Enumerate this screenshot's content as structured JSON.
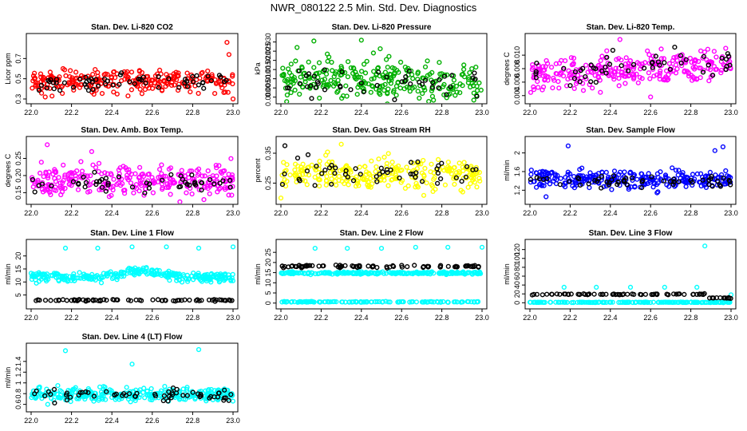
{
  "page": {
    "title": "NWR_080122  2.5 Min. Std. Dev. Diagnostics"
  },
  "chart_data": [
    {
      "type": "scatter",
      "title": "Stan. Dev. Li-820 CO2",
      "xlabel": "",
      "ylabel": "Licor ppm",
      "xlim": [
        22.0,
        23.0
      ],
      "ylim": [
        0.3,
        0.9
      ],
      "xticks": [
        "22.0",
        "22.2",
        "22.4",
        "22.6",
        "22.8",
        "23.0"
      ],
      "yticks": [
        0.3,
        0.5,
        0.7
      ],
      "series": [
        {
          "name": "all",
          "color": "#ff0000",
          "n": 260,
          "center": 0.48,
          "spread": 0.11,
          "outliers": [
            [
              22.97,
              0.86
            ],
            [
              22.98,
              0.74
            ],
            [
              23.0,
              0.3
            ],
            [
              22.07,
              0.32
            ],
            [
              22.48,
              0.33
            ]
          ]
        },
        {
          "name": "highlighted",
          "color": "#000000",
          "n": 60,
          "center": 0.47,
          "spread": 0.07
        }
      ]
    },
    {
      "type": "scatter",
      "title": "Stan. Dev. Li-820 Pressure",
      "xlabel": "",
      "ylabel": "kPa",
      "xlim": [
        22.0,
        23.0
      ],
      "ylim": [
        -0.001,
        0.032
      ],
      "xticks": [
        "22.0",
        "22.2",
        "22.4",
        "22.6",
        "22.8",
        "23.0"
      ],
      "yticks": [
        0.0,
        0.005,
        0.01,
        0.015,
        0.02,
        0.025,
        0.03
      ],
      "ytick_labels": [
        "0.000",
        "0.005",
        "0.010",
        "0.015",
        "0.020",
        "0.025",
        "0.030"
      ],
      "series": [
        {
          "name": "all",
          "color": "#00b000",
          "n": 280,
          "center": 0.009,
          "spread": 0.01,
          "trend": -0.003,
          "outliers": [
            [
              22.4,
              0.031
            ],
            [
              22.08,
              0.027
            ],
            [
              22.46,
              0.024
            ]
          ]
        },
        {
          "name": "highlighted",
          "color": "#000000",
          "n": 45,
          "center": 0.007,
          "spread": 0.006
        }
      ]
    },
    {
      "type": "scatter",
      "title": "Stan. Dev. Li-820 Temp.",
      "xlabel": "",
      "ylabel": "degrees C",
      "xlim": [
        22.0,
        23.0
      ],
      "ylim": [
        0.0035,
        0.0125
      ],
      "xticks": [
        "22.0",
        "22.2",
        "22.4",
        "22.6",
        "22.8",
        "23.0"
      ],
      "yticks": [
        0.004,
        0.006,
        0.008,
        0.01
      ],
      "ytick_labels": [
        "0.004",
        "0.006",
        "0.008",
        "0.010"
      ],
      "series": [
        {
          "name": "all",
          "color": "#ff00ff",
          "n": 280,
          "center": 0.0078,
          "spread": 0.0022,
          "trend": 0.0015,
          "outliers": [
            [
              22.6,
              0.0038
            ],
            [
              22.02,
              0.0049
            ]
          ]
        },
        {
          "name": "highlighted",
          "color": "#000000",
          "n": 50,
          "center": 0.0082,
          "spread": 0.0018,
          "trend": 0.0015
        }
      ]
    },
    {
      "type": "scatter",
      "title": "Stan. Dev. Amb. Box Temp.",
      "xlabel": "",
      "ylabel": "degrees C",
      "xlim": [
        22.0,
        23.0
      ],
      "ylim": [
        0.13,
        0.3
      ],
      "xticks": [
        "22.0",
        "22.2",
        "22.4",
        "22.6",
        "22.8",
        "23.0"
      ],
      "yticks": [
        0.15,
        0.2,
        0.25
      ],
      "ytick_labels": [
        "0.15",
        "0.20",
        "0.25"
      ],
      "series": [
        {
          "name": "all",
          "color": "#ff00ff",
          "n": 280,
          "center": 0.185,
          "spread": 0.04,
          "outliers": [
            [
              22.08,
              0.29
            ],
            [
              22.3,
              0.27
            ]
          ]
        },
        {
          "name": "highlighted",
          "color": "#000000",
          "n": 50,
          "center": 0.18,
          "spread": 0.025
        }
      ]
    },
    {
      "type": "scatter",
      "title": "Stan. Dev. Gas Stream RH",
      "xlabel": "",
      "ylabel": "percent",
      "xlim": [
        22.0,
        23.0
      ],
      "ylim": [
        0.195,
        0.39
      ],
      "xticks": [
        "22.0",
        "22.2",
        "22.4",
        "22.6",
        "22.8",
        "23.0"
      ],
      "yticks": [
        0.25,
        0.35
      ],
      "ytick_labels": [
        "0.25",
        "0.35"
      ],
      "series": [
        {
          "name": "all",
          "color": "#ffff00",
          "n": 260,
          "center": 0.28,
          "spread": 0.045,
          "outliers": [
            [
              22.3,
              0.38
            ],
            [
              22.0,
              0.2
            ]
          ]
        },
        {
          "name": "highlighted",
          "color": "#000000",
          "n": 50,
          "center": 0.28,
          "spread": 0.04,
          "outliers": [
            [
              22.02,
              0.375
            ]
          ]
        }
      ]
    },
    {
      "type": "scatter",
      "title": "Stan. Dev. Sample Flow",
      "xlabel": "",
      "ylabel": "ml/min",
      "xlim": [
        22.0,
        23.0
      ],
      "ylim": [
        1.0,
        2.25
      ],
      "xticks": [
        "22.0",
        "22.2",
        "22.4",
        "22.6",
        "22.8",
        "23.0"
      ],
      "yticks": [
        1.2,
        1.6,
        2.0
      ],
      "series": [
        {
          "name": "all",
          "color": "#0000ff",
          "n": 280,
          "center": 1.42,
          "spread": 0.18,
          "outliers": [
            [
              22.19,
              2.15
            ],
            [
              22.96,
              2.13
            ],
            [
              22.92,
              2.05
            ],
            [
              22.08,
              1.06
            ]
          ]
        },
        {
          "name": "highlighted",
          "color": "#000000",
          "n": 55,
          "center": 1.4,
          "spread": 0.12
        }
      ]
    },
    {
      "type": "scatter",
      "title": "Stan. Dev. Line 1 Flow",
      "xlabel": "",
      "ylabel": "ml/min",
      "xlim": [
        22.0,
        23.0
      ],
      "ylim": [
        1.5,
        24.5
      ],
      "xticks": [
        "22.0",
        "22.2",
        "22.4",
        "22.6",
        "22.8",
        "23.0"
      ],
      "yticks": [
        5,
        10,
        15,
        20
      ],
      "series": [
        {
          "name": "all",
          "color": "#00ffff",
          "n": 300,
          "center": 11.8,
          "spread": 1.6,
          "bump": 2.5,
          "outliers": [
            [
              22.17,
              23.0
            ],
            [
              22.33,
              23.0
            ],
            [
              22.5,
              23.5
            ],
            [
              22.67,
              23.5
            ],
            [
              22.83,
              23.0
            ],
            [
              23.0,
              23.5
            ]
          ]
        },
        {
          "name": "highlighted",
          "color": "#000000",
          "n": 70,
          "center": 3.0,
          "spread": 0.3
        }
      ]
    },
    {
      "type": "scatter",
      "title": "Stan. Dev. Line 2 Flow",
      "xlabel": "",
      "ylabel": "ml/min",
      "xlim": [
        22.0,
        23.0
      ],
      "ylim": [
        -0.5,
        29.0
      ],
      "xticks": [
        "22.0",
        "22.2",
        "22.4",
        "22.6",
        "22.8",
        "23.0"
      ],
      "yticks": [
        0,
        5,
        10,
        15,
        20,
        25
      ],
      "series": [
        {
          "name": "all",
          "color": "#00ffff",
          "n": 250,
          "center": 14.8,
          "spread": 0.5,
          "outliers": [
            [
              22.17,
              27.0
            ],
            [
              22.33,
              27.0
            ],
            [
              22.5,
              27.0
            ],
            [
              22.67,
              27.5
            ],
            [
              22.83,
              27.5
            ],
            [
              23.0,
              27.5
            ]
          ]
        },
        {
          "name": "baseline",
          "color": "#00ffff",
          "n": 120,
          "center": 0.6,
          "spread": 0.2
        },
        {
          "name": "highlighted",
          "color": "#000000",
          "n": 80,
          "center": 18.0,
          "spread": 0.6
        }
      ]
    },
    {
      "type": "scatter",
      "title": "Stan. Dev. Line 3 Flow",
      "xlabel": "",
      "ylabel": "ml/min",
      "xlim": [
        22.0,
        23.0
      ],
      "ylim": [
        -3,
        132
      ],
      "xticks": [
        "22.0",
        "22.2",
        "22.4",
        "22.6",
        "22.8",
        "23.0"
      ],
      "yticks": [
        0,
        20,
        40,
        60,
        80,
        100,
        120
      ],
      "series": [
        {
          "name": "all",
          "color": "#00ffff",
          "n": 180,
          "center": 1.0,
          "spread": 0.5,
          "outliers": [
            [
              22.17,
              35
            ],
            [
              22.33,
              35
            ],
            [
              22.5,
              35
            ],
            [
              22.67,
              35
            ],
            [
              22.83,
              35
            ],
            [
              22.87,
              128
            ],
            [
              23.0,
              18
            ]
          ]
        },
        {
          "name": "highlighted",
          "color": "#000000",
          "n": 80,
          "center": 19.0,
          "spread": 1.0,
          "step_after": 22.87,
          "step_value": 11.0
        }
      ]
    },
    {
      "type": "scatter",
      "title": "Stan. Dev. Line 4 (LT) Flow",
      "xlabel": "",
      "ylabel": "ml/min",
      "xlim": [
        22.0,
        23.0
      ],
      "ylim": [
        0.55,
        1.65
      ],
      "xticks": [
        "22.0",
        "22.2",
        "22.4",
        "22.6",
        "22.8",
        "23.0"
      ],
      "yticks": [
        0.6,
        0.8,
        1.0,
        1.2,
        1.4
      ],
      "series": [
        {
          "name": "all",
          "color": "#00ffff",
          "n": 300,
          "center": 0.78,
          "spread": 0.11,
          "outliers": [
            [
              22.17,
              1.6
            ],
            [
              22.5,
              1.35
            ],
            [
              22.83,
              1.62
            ]
          ]
        },
        {
          "name": "highlighted",
          "color": "#000000",
          "n": 60,
          "center": 0.78,
          "spread": 0.09
        }
      ]
    }
  ]
}
